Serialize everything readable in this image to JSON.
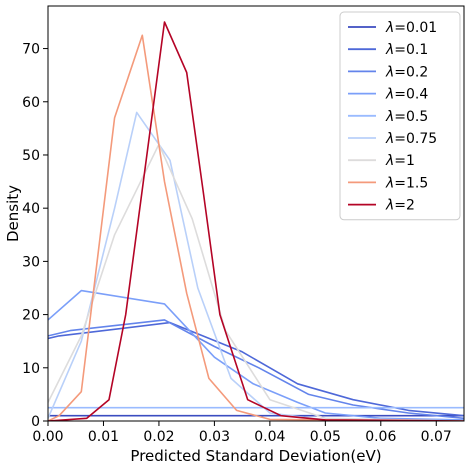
{
  "chart_data": {
    "type": "line",
    "title": "",
    "xlabel": "Predicted Standard Deviation(eV)",
    "ylabel": "Density",
    "xlim": [
      0.0,
      0.075
    ],
    "ylim": [
      0,
      78
    ],
    "xticks": [
      0.0,
      0.01,
      0.02,
      0.03,
      0.04,
      0.05,
      0.06,
      0.07
    ],
    "xtick_labels": [
      "0.00",
      "0.01",
      "0.02",
      "0.03",
      "0.04",
      "0.05",
      "0.06",
      "0.07"
    ],
    "yticks": [
      0,
      10,
      20,
      30,
      40,
      50,
      60,
      70
    ],
    "ytick_labels": [
      "0",
      "10",
      "20",
      "30",
      "40",
      "50",
      "60",
      "70"
    ],
    "grid": false,
    "legend_position": "top-right",
    "legend_prefix": "λ",
    "series": [
      {
        "name": "=0.01",
        "color": "#3b4cc0",
        "x": [
          0.0,
          0.075
        ],
        "y": [
          1.0,
          1.0
        ]
      },
      {
        "name": "=0.1",
        "color": "#4e68d8",
        "x": [
          0.0,
          0.002,
          0.022,
          0.035,
          0.045,
          0.055,
          0.065,
          0.075
        ],
        "y": [
          15.5,
          16.0,
          18.5,
          13.0,
          7.0,
          4.0,
          2.0,
          1.0
        ]
      },
      {
        "name": "=0.2",
        "color": "#6384eb",
        "x": [
          0.0,
          0.004,
          0.021,
          0.03,
          0.038,
          0.047,
          0.055,
          0.065,
          0.075
        ],
        "y": [
          16.0,
          17.0,
          19.0,
          14.0,
          10.0,
          5.0,
          3.0,
          1.5,
          0.5
        ]
      },
      {
        "name": "=0.4",
        "color": "#7b9ff9",
        "x": [
          0.0,
          0.006,
          0.021,
          0.03,
          0.037,
          0.045,
          0.05,
          0.06,
          0.075
        ],
        "y": [
          19.0,
          24.5,
          22.0,
          12.0,
          7.0,
          3.5,
          1.5,
          0.5,
          0.2
        ]
      },
      {
        "name": "=0.5",
        "color": "#9abbff",
        "x": [
          0.0,
          0.075
        ],
        "y": [
          2.5,
          2.5
        ]
      },
      {
        "name": "=0.75",
        "color": "#b9d0f9",
        "x": [
          0.0,
          0.006,
          0.012,
          0.016,
          0.022,
          0.027,
          0.033,
          0.04,
          0.05,
          0.075
        ],
        "y": [
          0.5,
          15.0,
          40.0,
          58.0,
          49.0,
          25.0,
          8.0,
          1.5,
          0.2,
          0.0
        ]
      },
      {
        "name": "=1",
        "color": "#dddcdc",
        "x": [
          0.0,
          0.006,
          0.012,
          0.02,
          0.026,
          0.032,
          0.04,
          0.05,
          0.075
        ],
        "y": [
          3.5,
          16.0,
          35.0,
          52.0,
          38.0,
          17.0,
          4.0,
          0.5,
          0.0
        ]
      },
      {
        "name": "=1.5",
        "color": "#f49a7b",
        "x": [
          0.0,
          0.002,
          0.006,
          0.012,
          0.017,
          0.021,
          0.025,
          0.029,
          0.034,
          0.04,
          0.075
        ],
        "y": [
          0.0,
          1.0,
          5.5,
          57.0,
          72.5,
          45.0,
          24.0,
          8.0,
          2.0,
          0.3,
          0.0
        ]
      },
      {
        "name": "=2",
        "color": "#b40426",
        "x": [
          0.0,
          0.007,
          0.011,
          0.014,
          0.021,
          0.025,
          0.028,
          0.031,
          0.036,
          0.042,
          0.05,
          0.075
        ],
        "y": [
          0.0,
          0.5,
          4.0,
          20.0,
          75.0,
          65.5,
          43.0,
          20.0,
          4.0,
          1.0,
          0.2,
          0.0
        ]
      }
    ]
  }
}
